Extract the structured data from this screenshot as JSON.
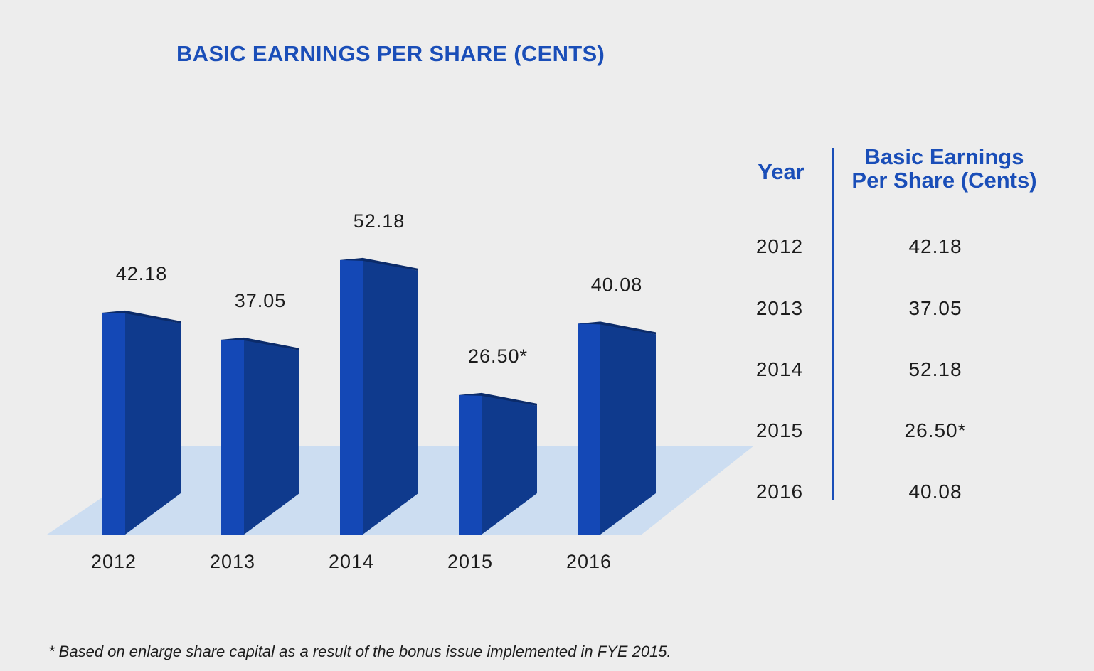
{
  "chart_data": {
    "type": "bar",
    "title": "BASIC EARNINGS PER SHARE (CENTS)",
    "categories": [
      "2012",
      "2013",
      "2014",
      "2015",
      "2016"
    ],
    "values": [
      42.18,
      37.05,
      52.18,
      26.5,
      40.08
    ],
    "value_labels": [
      "42.18",
      "37.05",
      "52.18",
      "26.50*",
      "40.08"
    ],
    "xlabel": "",
    "ylabel": "",
    "ylim": [
      0,
      60
    ],
    "style": "3d",
    "colors": {
      "bar_front": "#1448b6",
      "bar_side": "#0f3a8d",
      "bar_top": "#0b2b6a",
      "floor": "#ccddf1",
      "accent": "#1a4eb8"
    }
  },
  "table": {
    "header_year": "Year",
    "header_eps_line1": "Basic Earnings",
    "header_eps_line2": "Per Share (Cents)",
    "rows": [
      {
        "year": "2012",
        "eps": "42.18"
      },
      {
        "year": "2013",
        "eps": "37.05"
      },
      {
        "year": "2014",
        "eps": "52.18"
      },
      {
        "year": "2015",
        "eps": "26.50*"
      },
      {
        "year": "2016",
        "eps": "40.08"
      }
    ]
  },
  "footnote": "* Based on enlarge share capital as a result of the bonus issue implemented in FYE 2015."
}
